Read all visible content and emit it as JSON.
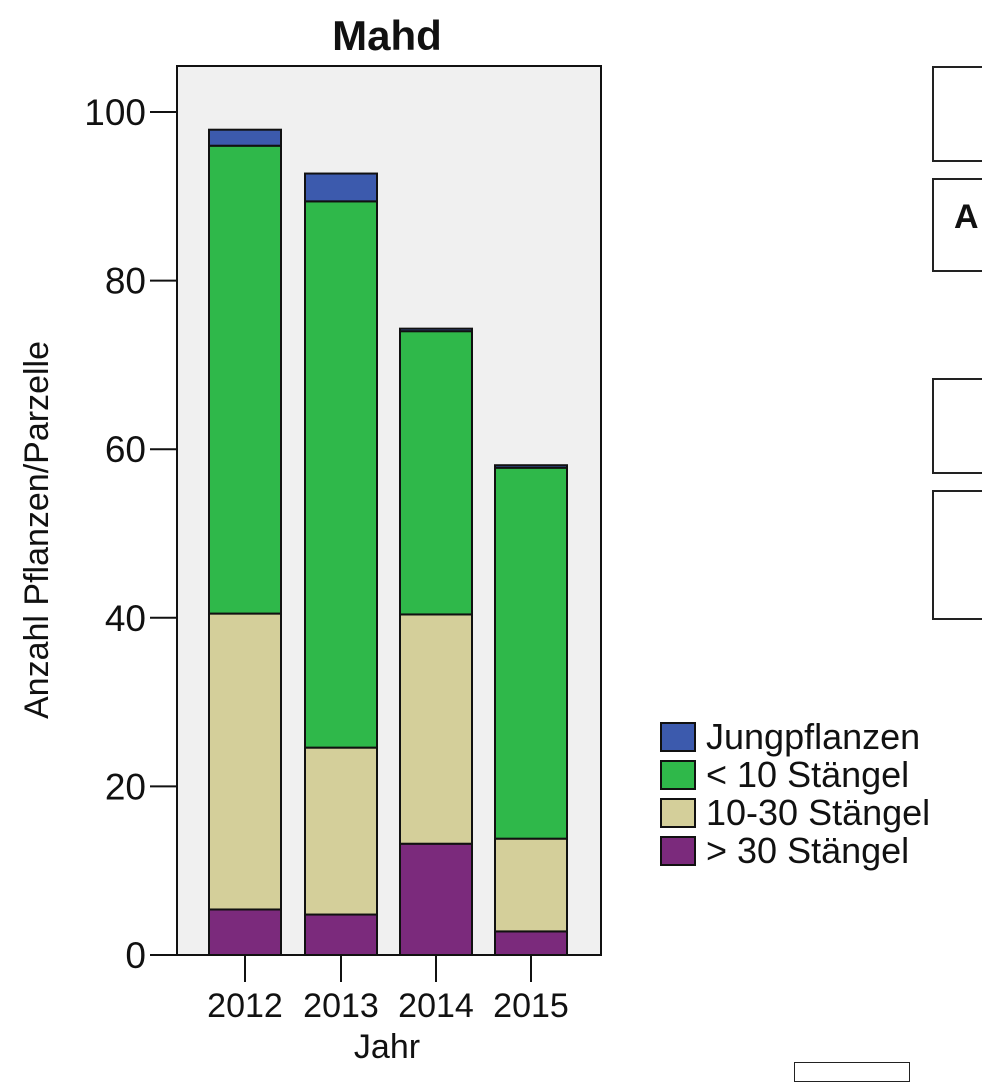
{
  "chart_data": {
    "type": "bar",
    "stacked": true,
    "title": "Mahd",
    "xlabel": "Jahr",
    "ylabel": "Anzahl Pflanzen/Parzelle",
    "categories": [
      "2012",
      "2013",
      "2014",
      "2015"
    ],
    "ylim": [
      0,
      105
    ],
    "yticks": [
      0,
      20,
      40,
      60,
      80,
      100
    ],
    "grid": false,
    "legend_position": "right",
    "series": [
      {
        "name": "> 30 Stängel",
        "color": "#7b2a7c",
        "values": [
          5.4,
          4.8,
          13.2,
          2.8
        ]
      },
      {
        "name": "10-30 Stängel",
        "color": "#d4cf9a",
        "values": [
          35.1,
          19.8,
          27.2,
          11.0
        ]
      },
      {
        "name": "< 10 Stängel",
        "color": "#2fb84a",
        "values": [
          55.5,
          64.8,
          33.6,
          44.0
        ]
      },
      {
        "name": "Jungpflanzen",
        "color": "#3c5aad",
        "values": [
          1.9,
          3.3,
          0.3,
          0.3
        ]
      }
    ],
    "legend_order": [
      "Jungpflanzen",
      "< 10 Stängel",
      "10-30 Stängel",
      "> 30 Stängel"
    ]
  },
  "side_panel": {
    "box_b_label": "A"
  }
}
